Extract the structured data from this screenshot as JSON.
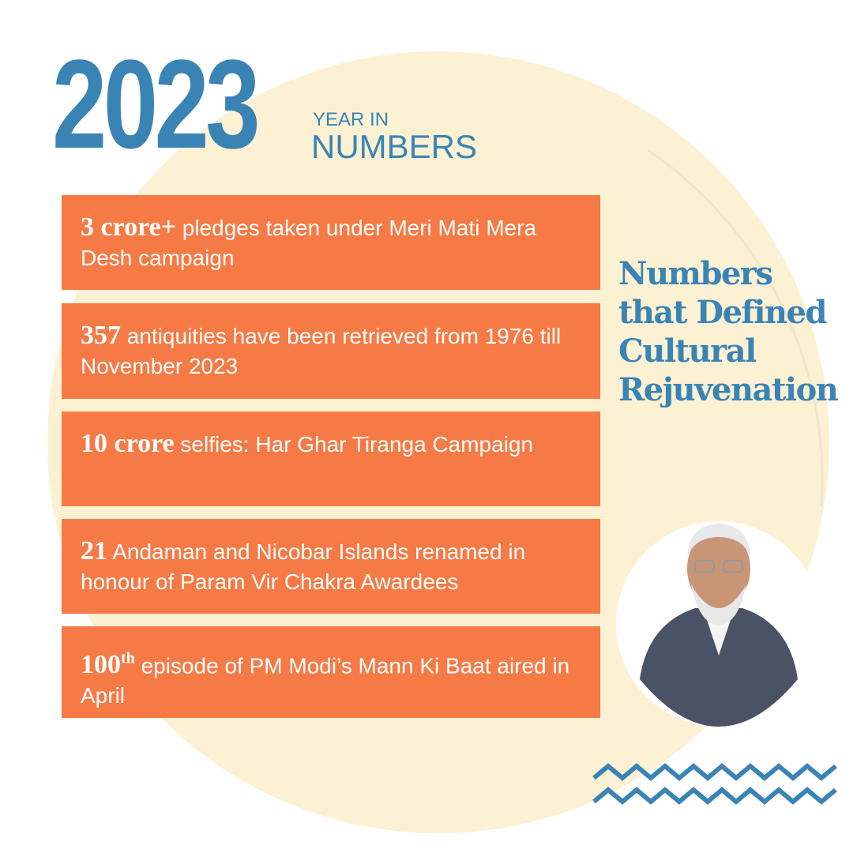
{
  "header": {
    "year": "2023",
    "kicker": "YEAR IN",
    "subtitle": "NUMBERS"
  },
  "items": [
    {
      "highlight": "3 crore+",
      "text": "pledges taken under Meri Mati Mera Desh campaign"
    },
    {
      "highlight": "357",
      "text": "antiquities have been retrieved from 1976 till November 2023"
    },
    {
      "highlight": "10 crore",
      "text": "selfies: Har Ghar Tiranga Campaign"
    },
    {
      "highlight": "21",
      "text": "Andaman and Nicobar Islands renamed in honour of Param Vir Chakra Awardees"
    },
    {
      "highlight": "100",
      "superscript": "th",
      "text": "episode of PM Modi’s Mann Ki Baat aired in April"
    }
  ],
  "side_title": {
    "lines": [
      "Numbers",
      "that Defined",
      "Cultural",
      "Rejuvenation"
    ]
  }
}
